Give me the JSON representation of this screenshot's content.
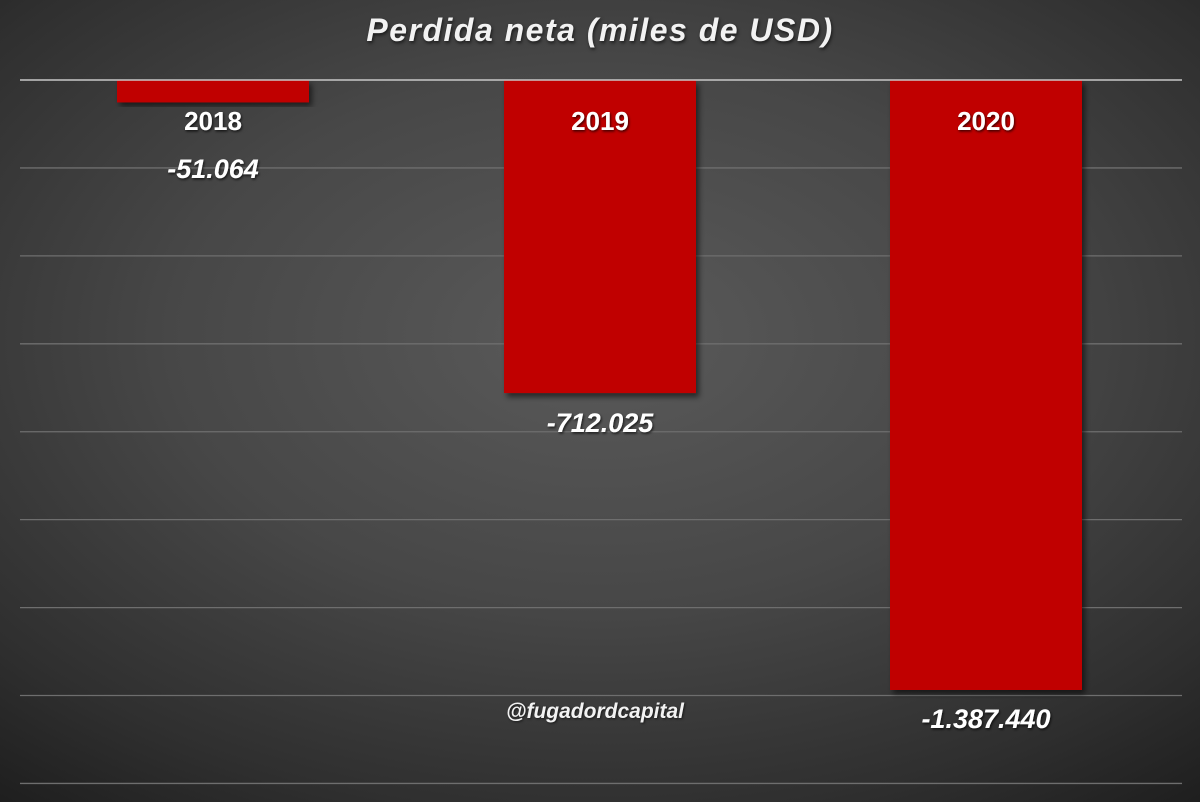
{
  "chart_data": {
    "type": "bar",
    "title": "Perdida neta (miles de USD)",
    "categories": [
      "2018",
      "2019",
      "2020"
    ],
    "values": [
      -51064,
      -712025,
      -1387440
    ],
    "value_labels": [
      "-51.064",
      "-712.025",
      "-1.387.440"
    ],
    "xlabel": "",
    "ylabel": "",
    "ylim": [
      -1600000,
      0
    ],
    "grid": true,
    "legend": "none",
    "bar_color": "#c00000",
    "background_color": "#474747"
  },
  "watermark": "@fugadordcapital"
}
